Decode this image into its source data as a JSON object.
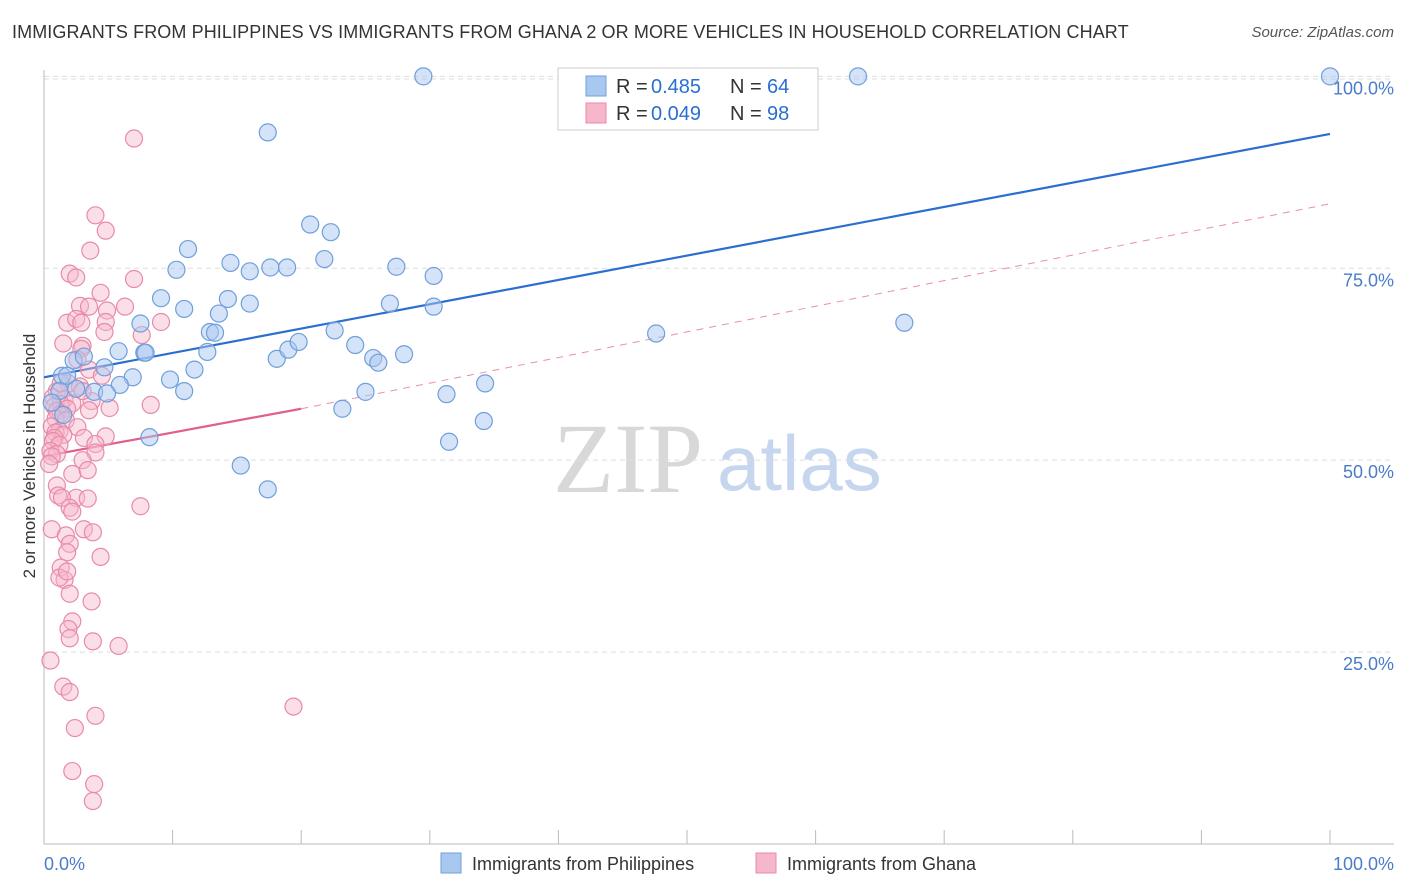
{
  "title": "IMMIGRANTS FROM PHILIPPINES VS IMMIGRANTS FROM GHANA 2 OR MORE VEHICLES IN HOUSEHOLD CORRELATION CHART",
  "source": "Source: ZipAtlas.com",
  "watermark": {
    "zip": "ZIP",
    "atlas": "atlas"
  },
  "colors": {
    "blue_fill": "#a9c8f0",
    "blue_stroke": "#6f9fdc",
    "blue_line": "#2a6fd0",
    "pink_fill": "#f6b7cb",
    "pink_stroke": "#e88aa8",
    "pink_line": "#e0608a",
    "grid": "#dddddd",
    "tick_label": "#4a7cc9"
  },
  "legend": {
    "r_label": "R =",
    "n_label": "N =",
    "blue": {
      "r": "0.485",
      "n": "64"
    },
    "pink": {
      "r": "0.049",
      "n": "98"
    }
  },
  "chart_data": {
    "type": "scatter",
    "ylabel": "2 or more Vehicles in Household",
    "xlabel": "",
    "xlim": [
      0,
      100
    ],
    "ylim": [
      0,
      102
    ],
    "x_tick_labels": {
      "left": "0.0%",
      "right": "100.0%"
    },
    "y_ticks": [
      25,
      50,
      75,
      100
    ],
    "y_tick_labels": [
      "25.0%",
      "50.0%",
      "75.0%",
      "100.0%"
    ],
    "grid": true,
    "legend_position": "top-center",
    "series": [
      {
        "name": "Immigrants from Philippines",
        "color": "blue",
        "trend": {
          "x0": 0,
          "y0": 60.8,
          "x1": 100,
          "y1": 92.5
        },
        "points": [
          [
            29.5,
            100
          ],
          [
            63.3,
            100
          ],
          [
            100,
            100
          ],
          [
            17.4,
            92.7
          ],
          [
            20.7,
            80.7
          ],
          [
            22.3,
            79.7
          ],
          [
            11.2,
            77.5
          ],
          [
            14.5,
            75.7
          ],
          [
            10.3,
            74.8
          ],
          [
            16.0,
            74.6
          ],
          [
            17.6,
            75.1
          ],
          [
            18.9,
            75.1
          ],
          [
            21.8,
            76.2
          ],
          [
            27.4,
            75.2
          ],
          [
            30.3,
            74.0
          ],
          [
            9.1,
            71.1
          ],
          [
            14.3,
            71.0
          ],
          [
            16.0,
            70.4
          ],
          [
            26.9,
            70.4
          ],
          [
            30.3,
            70.0
          ],
          [
            7.5,
            67.8
          ],
          [
            10.9,
            69.7
          ],
          [
            13.6,
            69.1
          ],
          [
            12.9,
            66.7
          ],
          [
            13.3,
            66.6
          ],
          [
            22.6,
            66.9
          ],
          [
            47.6,
            66.5
          ],
          [
            66.9,
            67.9
          ],
          [
            5.8,
            64.2
          ],
          [
            7.8,
            64.0
          ],
          [
            7.9,
            64.0
          ],
          [
            12.7,
            64.1
          ],
          [
            18.1,
            63.2
          ],
          [
            19.0,
            64.4
          ],
          [
            19.8,
            65.4
          ],
          [
            24.2,
            65.0
          ],
          [
            25.6,
            63.3
          ],
          [
            26.0,
            62.7
          ],
          [
            28.0,
            63.8
          ],
          [
            2.3,
            63.0
          ],
          [
            4.7,
            62.1
          ],
          [
            11.7,
            61.8
          ],
          [
            1.4,
            61.0
          ],
          [
            6.9,
            60.8
          ],
          [
            9.8,
            60.5
          ],
          [
            5.9,
            59.8
          ],
          [
            10.9,
            59.0
          ],
          [
            3.9,
            58.9
          ],
          [
            2.5,
            59.3
          ],
          [
            4.9,
            58.7
          ],
          [
            31.3,
            58.6
          ],
          [
            25.0,
            58.9
          ],
          [
            34.3,
            60.0
          ],
          [
            23.2,
            56.7
          ],
          [
            34.2,
            55.1
          ],
          [
            8.2,
            53.0
          ],
          [
            31.5,
            52.4
          ],
          [
            15.3,
            49.3
          ],
          [
            17.4,
            46.2
          ],
          [
            1.8,
            61.0
          ],
          [
            1.2,
            59.0
          ],
          [
            0.6,
            57.5
          ],
          [
            1.5,
            55.9
          ],
          [
            3.1,
            63.5
          ]
        ]
      },
      {
        "name": "Immigrants from Ghana",
        "color": "pink",
        "trend": {
          "x0": 0,
          "y0": 50.5,
          "x1": 20,
          "y1": 56.7
        },
        "trend_ext": {
          "x0": 20,
          "y0": 56.7,
          "x1": 100,
          "y1": 83.4
        },
        "points": [
          [
            7.0,
            91.9
          ],
          [
            4.0,
            81.9
          ],
          [
            4.8,
            79.9
          ],
          [
            3.6,
            77.3
          ],
          [
            2.0,
            74.3
          ],
          [
            2.5,
            73.8
          ],
          [
            7.0,
            73.6
          ],
          [
            4.4,
            71.8
          ],
          [
            2.8,
            70.1
          ],
          [
            3.5,
            70.0
          ],
          [
            6.3,
            70.0
          ],
          [
            4.9,
            69.5
          ],
          [
            1.8,
            67.9
          ],
          [
            2.5,
            68.4
          ],
          [
            4.8,
            68.0
          ],
          [
            9.1,
            68.0
          ],
          [
            2.9,
            67.9
          ],
          [
            4.7,
            66.7
          ],
          [
            1.5,
            65.2
          ],
          [
            3.0,
            64.9
          ],
          [
            2.9,
            64.5
          ],
          [
            7.6,
            66.3
          ],
          [
            2.6,
            63.1
          ],
          [
            3.5,
            61.8
          ],
          [
            4.5,
            61.0
          ],
          [
            1.9,
            60.0
          ],
          [
            2.8,
            59.6
          ],
          [
            1.0,
            59.0
          ],
          [
            0.7,
            58.2
          ],
          [
            1.6,
            58.0
          ],
          [
            3.7,
            57.7
          ],
          [
            2.2,
            57.4
          ],
          [
            1.3,
            57.3
          ],
          [
            0.8,
            57.0
          ],
          [
            1.8,
            56.7
          ],
          [
            3.5,
            56.5
          ],
          [
            5.1,
            56.8
          ],
          [
            8.3,
            57.2
          ],
          [
            1.0,
            56.4
          ],
          [
            1.3,
            56.0
          ],
          [
            0.9,
            55.4
          ],
          [
            1.7,
            55.2
          ],
          [
            0.6,
            54.4
          ],
          [
            2.6,
            54.3
          ],
          [
            1.2,
            53.8
          ],
          [
            0.9,
            53.6
          ],
          [
            1.5,
            53.3
          ],
          [
            0.8,
            52.9
          ],
          [
            3.1,
            52.9
          ],
          [
            4.8,
            53.1
          ],
          [
            0.7,
            52.5
          ],
          [
            1.2,
            52.0
          ],
          [
            4.0,
            52.1
          ],
          [
            0.5,
            51.2
          ],
          [
            1.0,
            50.8
          ],
          [
            4.0,
            51.0
          ],
          [
            0.6,
            50.5
          ],
          [
            3.0,
            50.0
          ],
          [
            0.4,
            49.5
          ],
          [
            2.2,
            48.2
          ],
          [
            3.4,
            48.7
          ],
          [
            1.0,
            46.7
          ],
          [
            1.1,
            45.4
          ],
          [
            2.5,
            45.1
          ],
          [
            1.4,
            45.1
          ],
          [
            3.4,
            45.0
          ],
          [
            2.0,
            43.8
          ],
          [
            7.5,
            44.0
          ],
          [
            2.2,
            43.3
          ],
          [
            0.6,
            41.0
          ],
          [
            3.1,
            41.0
          ],
          [
            3.8,
            40.6
          ],
          [
            1.7,
            40.2
          ],
          [
            2.0,
            39.1
          ],
          [
            1.8,
            38.0
          ],
          [
            4.4,
            37.4
          ],
          [
            1.3,
            36.0
          ],
          [
            1.6,
            34.4
          ],
          [
            1.2,
            34.7
          ],
          [
            2.0,
            32.6
          ],
          [
            3.7,
            31.6
          ],
          [
            2.2,
            29.0
          ],
          [
            1.9,
            28.0
          ],
          [
            2.0,
            26.8
          ],
          [
            3.8,
            26.4
          ],
          [
            5.8,
            25.8
          ],
          [
            0.5,
            23.9
          ],
          [
            1.5,
            20.5
          ],
          [
            2.0,
            19.8
          ],
          [
            19.4,
            17.9
          ],
          [
            4.0,
            16.7
          ],
          [
            2.4,
            15.1
          ],
          [
            2.2,
            9.5
          ],
          [
            3.9,
            7.8
          ],
          [
            3.8,
            5.6
          ],
          [
            1.8,
            35.5
          ],
          [
            3.0,
            59.0
          ],
          [
            1.3,
            60.0
          ]
        ]
      }
    ]
  }
}
